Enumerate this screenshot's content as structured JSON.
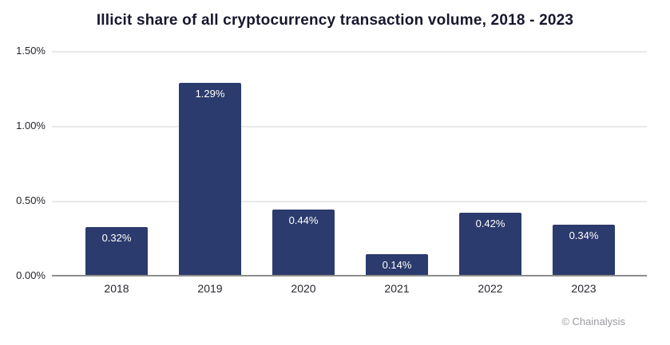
{
  "title": "Illicit share of all cryptocurrency transaction volume, 2018 - 2023",
  "attribution": "© Chainalysis",
  "chart_data": {
    "type": "bar",
    "title": "Illicit share of all cryptocurrency transaction volume, 2018 - 2023",
    "categories": [
      "2018",
      "2019",
      "2020",
      "2021",
      "2022",
      "2023"
    ],
    "values": [
      0.32,
      1.29,
      0.44,
      0.14,
      0.42,
      0.34
    ],
    "value_labels": [
      "0.32%",
      "1.29%",
      "0.44%",
      "0.14%",
      "0.42%",
      "0.34%"
    ],
    "xlabel": "",
    "ylabel": "",
    "ylim": [
      0,
      1.5
    ],
    "yticks": [
      0,
      0.5,
      1.0,
      1.5
    ],
    "ytick_labels": [
      "0.00%",
      "0.50%",
      "1.00%",
      "1.50%"
    ],
    "grid": true,
    "legend": false,
    "colors": {
      "bar": "#2c3b6d",
      "bar_label": "#ffffff",
      "gridline": "#e9e9e9",
      "baseline": "#8d8d8d",
      "title_text": "#17172e",
      "axis_text": "#26262e",
      "attribution_text": "#9b9ba1",
      "background": "#ffffff"
    }
  }
}
